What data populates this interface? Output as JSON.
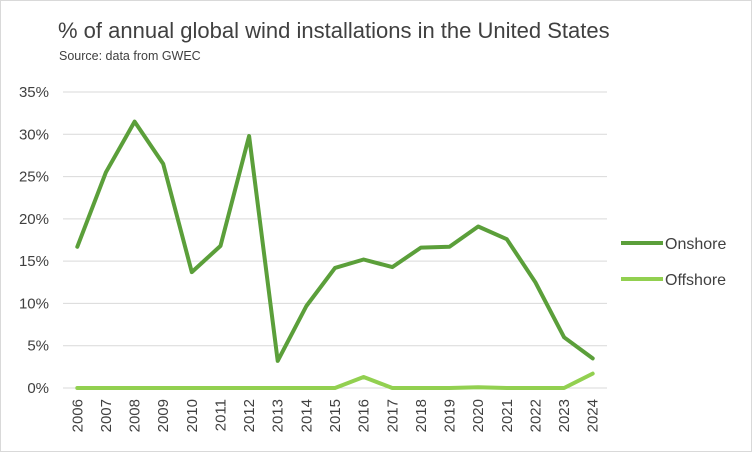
{
  "chart_data": {
    "type": "line",
    "title": "% of annual global wind installations in the United States",
    "subtitle": "Source: data from GWEC",
    "xlabel": "",
    "ylabel": "",
    "ylim": [
      0,
      0.35
    ],
    "y_ticks": [
      "0%",
      "5%",
      "10%",
      "15%",
      "20%",
      "25%",
      "30%",
      "35%"
    ],
    "y_tick_values": [
      0,
      0.05,
      0.1,
      0.15,
      0.2,
      0.25,
      0.3,
      0.35
    ],
    "categories": [
      "2006",
      "2007",
      "2008",
      "2009",
      "2010",
      "2011",
      "2012",
      "2013",
      "2014",
      "2015",
      "2016",
      "2017",
      "2018",
      "2019",
      "2020",
      "2021",
      "2022",
      "2023",
      "2024"
    ],
    "grid": true,
    "legend_position": "right",
    "series": [
      {
        "name": "Onshore",
        "color": "#5b9f3a",
        "values": [
          0.167,
          0.255,
          0.315,
          0.265,
          0.137,
          0.168,
          0.298,
          0.032,
          0.097,
          0.142,
          0.152,
          0.143,
          0.166,
          0.167,
          0.191,
          0.176,
          0.125,
          0.06,
          0.035
        ]
      },
      {
        "name": "Offshore",
        "color": "#92d050",
        "values": [
          0,
          0,
          0,
          0,
          0,
          0,
          0,
          0,
          0,
          0,
          0.013,
          0,
          0,
          0,
          0.001,
          0,
          0,
          0,
          0.017
        ]
      }
    ]
  }
}
